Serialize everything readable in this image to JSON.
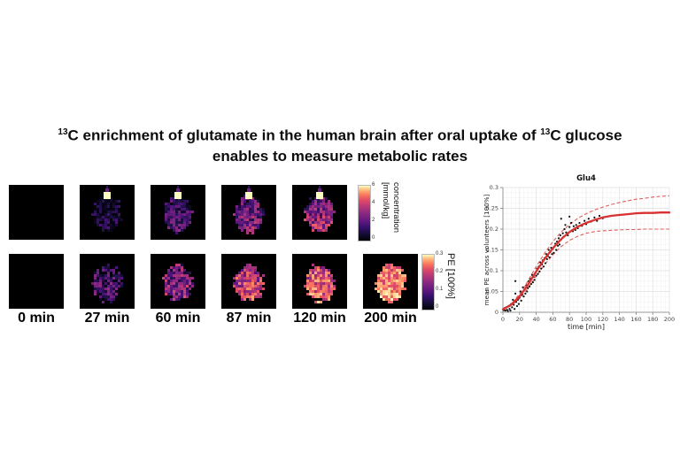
{
  "title": {
    "sup1": "13",
    "seg1": "C enrichment of glutamate in the human brain after oral uptake of ",
    "sup2": "13",
    "seg2": "C glucose",
    "line2": "enables to measure metabolic rates"
  },
  "time_labels": [
    "0 min",
    "27 min",
    "60 min",
    "87 min",
    "120 min",
    "200 min"
  ],
  "colormap": {
    "name": "magma",
    "stops": [
      "#000004",
      "#1c1044",
      "#4f127b",
      "#812581",
      "#b5367a",
      "#e55064",
      "#fb8761",
      "#fec287",
      "#fcfdbf"
    ]
  },
  "brain_rows": [
    {
      "name": "concentration",
      "colorbar": {
        "label_line1": "concentration",
        "label_line2": "[mmol/kg]",
        "ticks_top_to_bottom": [
          "6",
          "4",
          "2",
          "0"
        ]
      },
      "cells": [
        {
          "time": "0 min",
          "empty": true
        },
        {
          "time": "27 min",
          "empty": false,
          "base": 0.1,
          "noise": 0.13,
          "bias": 0.05,
          "top_spot": true,
          "seed": 11
        },
        {
          "time": "60 min",
          "empty": false,
          "base": 0.22,
          "noise": 0.16,
          "bias": 0.06,
          "top_spot": true,
          "seed": 22
        },
        {
          "time": "87 min",
          "empty": false,
          "base": 0.3,
          "noise": 0.2,
          "bias": 0.1,
          "top_spot": true,
          "seed": 33
        },
        {
          "time": "120 min",
          "empty": false,
          "base": 0.38,
          "noise": 0.22,
          "bias": 0.12,
          "top_spot": true,
          "seed": 44
        }
      ]
    },
    {
      "name": "PE",
      "colorbar": {
        "label": "PE [100%]",
        "ticks_top_to_bottom": [
          "0.3",
          "0.2",
          "0.1",
          "0"
        ]
      },
      "cells": [
        {
          "time": "0 min",
          "empty": true
        },
        {
          "time": "27 min",
          "empty": false,
          "base": 0.2,
          "noise": 0.22,
          "bias": 0.05,
          "top_spot": false,
          "seed": 55
        },
        {
          "time": "60 min",
          "empty": false,
          "base": 0.35,
          "noise": 0.24,
          "bias": 0.06,
          "top_spot": false,
          "seed": 66
        },
        {
          "time": "87 min",
          "empty": false,
          "base": 0.52,
          "noise": 0.24,
          "bias": 0.08,
          "top_spot": false,
          "seed": 77
        },
        {
          "time": "120 min",
          "empty": false,
          "base": 0.63,
          "noise": 0.26,
          "bias": 0.1,
          "top_spot": false,
          "seed": 88
        },
        {
          "time": "200 min",
          "empty": false,
          "base": 0.76,
          "noise": 0.2,
          "bias": 0.06,
          "top_spot": false,
          "seed": 99
        }
      ]
    }
  ],
  "chart_data": {
    "type": "scatter",
    "title": "Glu4",
    "xlabel": "time [min]",
    "ylabel": "mean PE across volunteers [100%]",
    "xlim": [
      0,
      200
    ],
    "ylim": [
      0,
      0.3
    ],
    "xticks": [
      0,
      20,
      40,
      60,
      80,
      100,
      120,
      140,
      160,
      180,
      200
    ],
    "yticks": [
      0,
      0.05,
      0.1,
      0.15,
      0.2,
      0.25,
      0.3
    ],
    "grid": {
      "major": true,
      "minor": true,
      "minor_x_step": 5,
      "minor_y_step": 0.0125
    },
    "colors": {
      "fit": "#d93030",
      "ci": "#e05d5d",
      "dots": "#111111"
    },
    "series": [
      {
        "name": "volunteer measurements",
        "role": "scatter",
        "points": [
          [
            1,
            0.005
          ],
          [
            2,
            0.01
          ],
          [
            3,
            0.004
          ],
          [
            4,
            0.012
          ],
          [
            5,
            0.006
          ],
          [
            6,
            0.003
          ],
          [
            7,
            0.015
          ],
          [
            8,
            0.008
          ],
          [
            9,
            0.004
          ],
          [
            10,
            0.02
          ],
          [
            11,
            0.012
          ],
          [
            12,
            0.03
          ],
          [
            13,
            0.018
          ],
          [
            14,
            0.008
          ],
          [
            15,
            0.045
          ],
          [
            15,
            0.075
          ],
          [
            16,
            0.025
          ],
          [
            17,
            0.015
          ],
          [
            18,
            0.03
          ],
          [
            19,
            0.02
          ],
          [
            20,
            0.035
          ],
          [
            21,
            0.05
          ],
          [
            22,
            0.028
          ],
          [
            23,
            0.042
          ],
          [
            24,
            0.06
          ],
          [
            25,
            0.038
          ],
          [
            26,
            0.055
          ],
          [
            27,
            0.045
          ],
          [
            28,
            0.065
          ],
          [
            29,
            0.05
          ],
          [
            30,
            0.058
          ],
          [
            31,
            0.075
          ],
          [
            32,
            0.062
          ],
          [
            33,
            0.08
          ],
          [
            34,
            0.068
          ],
          [
            35,
            0.09
          ],
          [
            36,
            0.072
          ],
          [
            37,
            0.085
          ],
          [
            38,
            0.078
          ],
          [
            39,
            0.095
          ],
          [
            40,
            0.088
          ],
          [
            41,
            0.105
          ],
          [
            42,
            0.092
          ],
          [
            43,
            0.11
          ],
          [
            44,
            0.098
          ],
          [
            45,
            0.12
          ],
          [
            46,
            0.105
          ],
          [
            47,
            0.115
          ],
          [
            48,
            0.125
          ],
          [
            49,
            0.11
          ],
          [
            50,
            0.13
          ],
          [
            51,
            0.118
          ],
          [
            52,
            0.14
          ],
          [
            53,
            0.128
          ],
          [
            54,
            0.135
          ],
          [
            55,
            0.15
          ],
          [
            56,
            0.132
          ],
          [
            57,
            0.145
          ],
          [
            58,
            0.155
          ],
          [
            59,
            0.14
          ],
          [
            60,
            0.152
          ],
          [
            61,
            0.143
          ],
          [
            62,
            0.158
          ],
          [
            63,
            0.165
          ],
          [
            64,
            0.15
          ],
          [
            65,
            0.17
          ],
          [
            66,
            0.16
          ],
          [
            67,
            0.178
          ],
          [
            68,
            0.163
          ],
          [
            69,
            0.185
          ],
          [
            70,
            0.175
          ],
          [
            70,
            0.225
          ],
          [
            72,
            0.19
          ],
          [
            73,
            0.182
          ],
          [
            74,
            0.2
          ],
          [
            75,
            0.21
          ],
          [
            76,
            0.192
          ],
          [
            78,
            0.185
          ],
          [
            80,
            0.205
          ],
          [
            80,
            0.23
          ],
          [
            82,
            0.215
          ],
          [
            84,
            0.195
          ],
          [
            85,
            0.207
          ],
          [
            87,
            0.198
          ],
          [
            88,
            0.21
          ],
          [
            90,
            0.202
          ],
          [
            92,
            0.215
          ],
          [
            95,
            0.208
          ],
          [
            98,
            0.22
          ],
          [
            100,
            0.212
          ],
          [
            103,
            0.225
          ],
          [
            106,
            0.218
          ],
          [
            110,
            0.228
          ],
          [
            113,
            0.22
          ],
          [
            116,
            0.232
          ],
          [
            120,
            0.226
          ]
        ]
      },
      {
        "name": "sigmoid fit",
        "role": "line",
        "style": "solid",
        "points": [
          [
            0,
            0.007
          ],
          [
            10,
            0.018
          ],
          [
            20,
            0.038
          ],
          [
            30,
            0.066
          ],
          [
            40,
            0.098
          ],
          [
            50,
            0.128
          ],
          [
            60,
            0.154
          ],
          [
            70,
            0.176
          ],
          [
            80,
            0.193
          ],
          [
            90,
            0.206
          ],
          [
            100,
            0.215
          ],
          [
            110,
            0.222
          ],
          [
            120,
            0.228
          ],
          [
            130,
            0.232
          ],
          [
            140,
            0.234
          ],
          [
            150,
            0.236
          ],
          [
            160,
            0.238
          ],
          [
            170,
            0.239
          ],
          [
            180,
            0.239
          ],
          [
            190,
            0.24
          ],
          [
            200,
            0.24
          ]
        ]
      },
      {
        "name": "upper confidence bound",
        "role": "line",
        "style": "dashed",
        "points": [
          [
            0,
            0.008
          ],
          [
            10,
            0.02
          ],
          [
            20,
            0.044
          ],
          [
            30,
            0.075
          ],
          [
            40,
            0.11
          ],
          [
            50,
            0.142
          ],
          [
            60,
            0.17
          ],
          [
            70,
            0.193
          ],
          [
            80,
            0.211
          ],
          [
            90,
            0.226
          ],
          [
            100,
            0.237
          ],
          [
            110,
            0.246
          ],
          [
            120,
            0.253
          ],
          [
            130,
            0.259
          ],
          [
            140,
            0.264
          ],
          [
            150,
            0.268
          ],
          [
            160,
            0.272
          ],
          [
            170,
            0.274
          ],
          [
            180,
            0.277
          ],
          [
            190,
            0.279
          ],
          [
            200,
            0.28
          ]
        ]
      },
      {
        "name": "lower confidence bound",
        "role": "line",
        "style": "dashed",
        "points": [
          [
            0,
            0.006
          ],
          [
            10,
            0.016
          ],
          [
            20,
            0.033
          ],
          [
            30,
            0.058
          ],
          [
            40,
            0.087
          ],
          [
            50,
            0.114
          ],
          [
            60,
            0.138
          ],
          [
            70,
            0.158
          ],
          [
            80,
            0.173
          ],
          [
            90,
            0.183
          ],
          [
            100,
            0.19
          ],
          [
            110,
            0.194
          ],
          [
            120,
            0.196
          ],
          [
            130,
            0.197
          ],
          [
            140,
            0.198
          ],
          [
            150,
            0.199
          ],
          [
            160,
            0.199
          ],
          [
            170,
            0.2
          ],
          [
            180,
            0.2
          ],
          [
            190,
            0.2
          ],
          [
            200,
            0.2
          ]
        ]
      }
    ]
  }
}
